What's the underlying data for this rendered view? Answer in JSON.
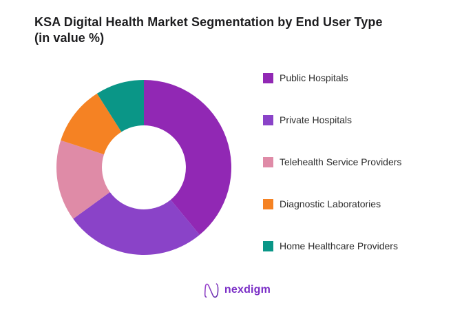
{
  "title": {
    "line1": "KSA Digital Health Market Segmentation by End User Type",
    "line2": "(in value %)"
  },
  "chart_data": {
    "type": "pie",
    "subtype": "donut",
    "title": "KSA Digital Health Market Segmentation by End User Type (in value %)",
    "labels": [
      "Public Hospitals",
      "Private Hospitals",
      "Telehealth Service Providers",
      "Diagnostic Laboratories",
      "Home Healthcare Providers"
    ],
    "values": [
      39,
      26,
      15,
      11,
      9
    ],
    "unit": "%",
    "colors": [
      "#9128B4",
      "#8A43C8",
      "#DF8BA7",
      "#F58223",
      "#0A9687"
    ],
    "start_angle_deg": 0,
    "direction": "clockwise",
    "inner_radius_ratio": 0.48,
    "data_labels_shown": false,
    "legend_position": "right",
    "background": "#ffffff"
  },
  "logo": {
    "text": "nexdigm",
    "color": "#7a2ec6",
    "mark_gradient_start": "#a44bd3",
    "mark_gradient_end": "#5f2ba8"
  }
}
